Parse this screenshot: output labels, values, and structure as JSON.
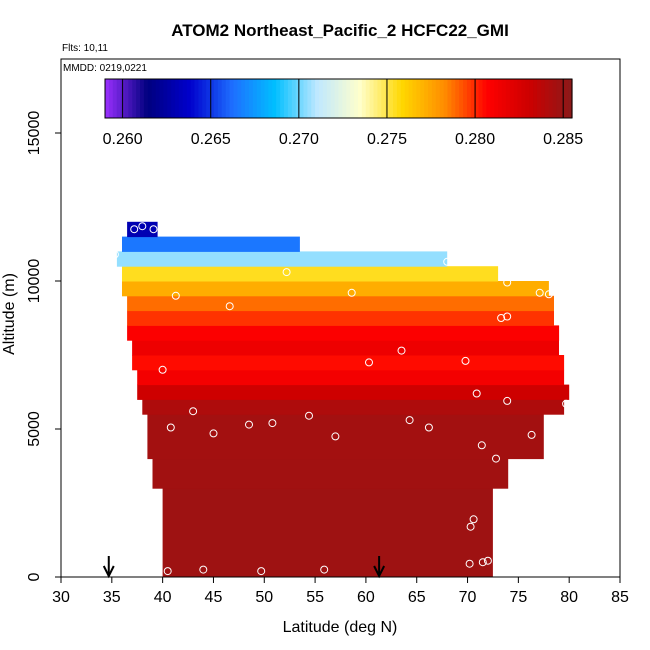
{
  "chart_data": {
    "type": "heatmap",
    "title": "ATOM2 Northeast_Pacific_2 HCFC22_GMI",
    "info_lines": [
      "Flts: 10,11",
      "MMDD: 0219,0221"
    ],
    "xlabel": "Latitude (deg N)",
    "ylabel": "Altitude (m)",
    "xlim": [
      30,
      85
    ],
    "ylim": [
      0,
      17500
    ],
    "x_ticks": [
      30,
      35,
      40,
      45,
      50,
      55,
      60,
      65,
      70,
      75,
      80,
      85
    ],
    "y_ticks": [
      0,
      5000,
      10000,
      15000
    ],
    "colorbar": {
      "min": 0.259,
      "max": 0.2855,
      "ticks": [
        0.26,
        0.265,
        0.27,
        0.275,
        0.28,
        0.285
      ],
      "tick_labels": [
        "0.260",
        "0.265",
        "0.270",
        "0.275",
        "0.280",
        "0.285"
      ],
      "colors": [
        "#9b30ff",
        "#00007f",
        "#0000cc",
        "#1e6eff",
        "#00bfff",
        "#bfe8ff",
        "#ffffcc",
        "#ffd700",
        "#ff8c00",
        "#ff0000",
        "#cc0000",
        "#8b1a1a"
      ]
    },
    "layers": [
      {
        "alt_bot": 0,
        "alt_top": 3000,
        "lat_start": 40.0,
        "lat_end": 72.5,
        "value": 0.2848
      },
      {
        "alt_bot": 3000,
        "alt_top": 4000,
        "lat_start": 39.0,
        "lat_end": 74.0,
        "value": 0.2847
      },
      {
        "alt_bot": 4000,
        "alt_top": 5500,
        "lat_start": 38.5,
        "lat_end": 77.5,
        "value": 0.2846
      },
      {
        "alt_bot": 5500,
        "alt_top": 6000,
        "lat_start": 38.0,
        "lat_end": 79.5,
        "value": 0.2842
      },
      {
        "alt_bot": 6000,
        "alt_top": 6500,
        "lat_start": 37.5,
        "lat_end": 80.0,
        "value": 0.283
      },
      {
        "alt_bot": 6500,
        "alt_top": 7000,
        "lat_start": 37.5,
        "lat_end": 79.5,
        "value": 0.2812
      },
      {
        "alt_bot": 7000,
        "alt_top": 7500,
        "lat_start": 37.0,
        "lat_end": 79.5,
        "value": 0.2805
      },
      {
        "alt_bot": 7500,
        "alt_top": 8000,
        "lat_start": 37.0,
        "lat_end": 79.0,
        "value": 0.2815
      },
      {
        "alt_bot": 8000,
        "alt_top": 8500,
        "lat_start": 36.5,
        "lat_end": 79.0,
        "value": 0.2808
      },
      {
        "alt_bot": 8500,
        "alt_top": 9000,
        "lat_start": 36.5,
        "lat_end": 78.5,
        "value": 0.2798
      },
      {
        "alt_bot": 9000,
        "alt_top": 9500,
        "lat_start": 36.5,
        "lat_end": 78.5,
        "value": 0.2788
      },
      {
        "alt_bot": 9500,
        "alt_top": 10000,
        "lat_start": 36.0,
        "lat_end": 78.0,
        "value": 0.2772
      },
      {
        "alt_bot": 10000,
        "alt_top": 10500,
        "lat_start": 36.0,
        "lat_end": 73.0,
        "value": 0.2755
      },
      {
        "alt_bot": 10500,
        "alt_top": 11000,
        "lat_start": 35.5,
        "lat_end": 68.0,
        "value": 0.2705
      },
      {
        "alt_bot": 11000,
        "alt_top": 11500,
        "lat_start": 36.0,
        "lat_end": 53.5,
        "value": 0.2665
      },
      {
        "alt_bot": 11500,
        "alt_top": 12000,
        "lat_start": 36.5,
        "lat_end": 39.5,
        "value": 0.263
      }
    ],
    "samples": [
      {
        "lat": 40.5,
        "alt": 200
      },
      {
        "lat": 44.0,
        "alt": 250
      },
      {
        "lat": 49.7,
        "alt": 200
      },
      {
        "lat": 55.9,
        "alt": 250
      },
      {
        "lat": 70.2,
        "alt": 450
      },
      {
        "lat": 71.5,
        "alt": 500
      },
      {
        "lat": 72.0,
        "alt": 550
      },
      {
        "lat": 70.3,
        "alt": 1700
      },
      {
        "lat": 70.6,
        "alt": 1950
      },
      {
        "lat": 72.8,
        "alt": 4000
      },
      {
        "lat": 71.4,
        "alt": 4450
      },
      {
        "lat": 76.3,
        "alt": 4800
      },
      {
        "lat": 40.8,
        "alt": 5050
      },
      {
        "lat": 45.0,
        "alt": 4850
      },
      {
        "lat": 48.5,
        "alt": 5150
      },
      {
        "lat": 50.8,
        "alt": 5200
      },
      {
        "lat": 57.0,
        "alt": 4750
      },
      {
        "lat": 64.3,
        "alt": 5300
      },
      {
        "lat": 66.2,
        "alt": 5050
      },
      {
        "lat": 43.0,
        "alt": 5600
      },
      {
        "lat": 54.4,
        "alt": 5450
      },
      {
        "lat": 70.9,
        "alt": 6200
      },
      {
        "lat": 73.9,
        "alt": 5950
      },
      {
        "lat": 79.7,
        "alt": 5850
      },
      {
        "lat": 40.0,
        "alt": 7000
      },
      {
        "lat": 60.3,
        "alt": 7250
      },
      {
        "lat": 63.5,
        "alt": 7650
      },
      {
        "lat": 69.8,
        "alt": 7300
      },
      {
        "lat": 73.3,
        "alt": 8750
      },
      {
        "lat": 73.9,
        "alt": 8800
      },
      {
        "lat": 46.6,
        "alt": 9150
      },
      {
        "lat": 41.3,
        "alt": 9500
      },
      {
        "lat": 58.6,
        "alt": 9600
      },
      {
        "lat": 77.1,
        "alt": 9600
      },
      {
        "lat": 78.0,
        "alt": 9550
      },
      {
        "lat": 73.9,
        "alt": 9950
      },
      {
        "lat": 52.2,
        "alt": 10300
      },
      {
        "lat": 68.0,
        "alt": 10650
      },
      {
        "lat": 35.3,
        "alt": 10900
      },
      {
        "lat": 37.2,
        "alt": 11750
      },
      {
        "lat": 38.0,
        "alt": 11850
      },
      {
        "lat": 39.1,
        "alt": 11750
      }
    ],
    "markers": [
      {
        "lat": 34.7,
        "label": ""
      },
      {
        "lat": 61.3,
        "label": ""
      }
    ]
  }
}
